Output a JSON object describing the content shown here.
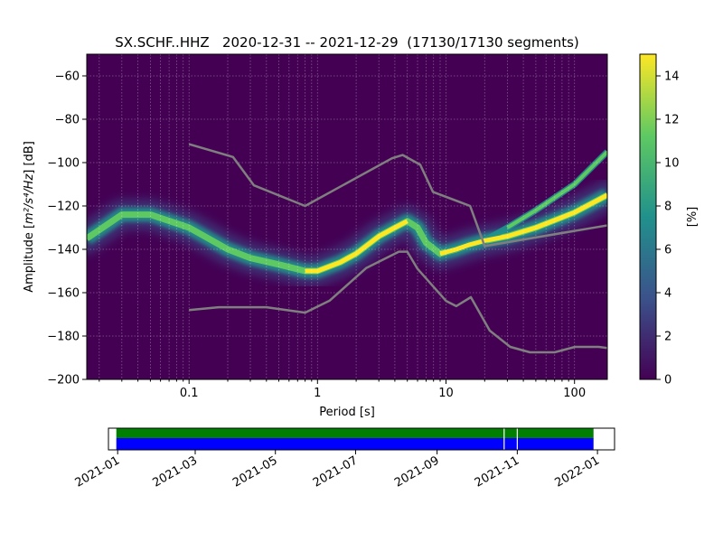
{
  "chart_data": [
    {
      "type": "heatmap",
      "title": "SX.SCHF..HHZ   2020-12-31 -- 2021-12-29  (17130/17130 segments)",
      "xlabel": "Period [s]",
      "ylabel_prefix": "Amplitude [",
      "ylabel_units": "m²/s⁴/Hz",
      "ylabel_suffix": "] [dB]",
      "x_scale": "log",
      "xlim": [
        0.016,
        180
      ],
      "ylim": [
        -200,
        -50
      ],
      "x_ticks": [
        {
          "v": 0.1,
          "label": "0.1"
        },
        {
          "v": 1,
          "label": "1"
        },
        {
          "v": 10,
          "label": "10"
        },
        {
          "v": 100,
          "label": "100"
        }
      ],
      "y_ticks": [
        {
          "v": -60,
          "label": "−60"
        },
        {
          "v": -80,
          "label": "−80"
        },
        {
          "v": -100,
          "label": "−100"
        },
        {
          "v": -120,
          "label": "−120"
        },
        {
          "v": -140,
          "label": "−140"
        },
        {
          "v": -160,
          "label": "−160"
        },
        {
          "v": -180,
          "label": "−180"
        },
        {
          "v": -200,
          "label": "−200"
        }
      ],
      "grid": true,
      "background_color": "#440154",
      "noise_model_color": "#7f7f7f",
      "mode_curve": {
        "period": [
          0.016,
          0.03,
          0.05,
          0.1,
          0.2,
          0.3,
          0.5,
          0.8,
          1.0,
          1.5,
          2.0,
          3.0,
          4.0,
          5.0,
          6.0,
          7.0,
          9.0,
          12.0,
          15.0,
          20.0,
          30.0,
          50.0,
          100.0,
          180.0
        ],
        "amplitude_db": [
          -135,
          -124,
          -124,
          -130,
          -140,
          -144,
          -147,
          -150,
          -150,
          -146,
          -142,
          -134,
          -130,
          -127,
          -130,
          -137,
          -142,
          -140,
          -138,
          -136,
          -134,
          -130,
          -123,
          -115
        ]
      },
      "upper_branch": {
        "period": [
          10,
          20,
          30,
          50,
          100,
          180
        ],
        "amplitude_db": [
          -141,
          -136,
          -130,
          -122,
          -110,
          -95
        ]
      },
      "nhnm": {
        "period": [
          0.1,
          0.22,
          0.32,
          0.8,
          3.8,
          4.6,
          6.3,
          7.9,
          15.4,
          20.0,
          354.8
        ],
        "amplitude_db": [
          -91.5,
          -97.4,
          -110.5,
          -120.0,
          -98.0,
          -96.5,
          -101.0,
          -113.5,
          -120.0,
          -138.5,
          -126.0
        ]
      },
      "nlnm": {
        "period": [
          0.1,
          0.17,
          0.4,
          0.8,
          1.24,
          2.4,
          4.3,
          5.0,
          6.0,
          10.0,
          12.0,
          15.6,
          21.9,
          31.6,
          45.0,
          70.0,
          101.0,
          154.0,
          328.0
        ],
        "amplitude_db": [
          -168.0,
          -166.7,
          -166.7,
          -169.2,
          -163.7,
          -148.6,
          -141.1,
          -141.1,
          -149.0,
          -163.8,
          -166.2,
          -162.1,
          -177.5,
          -185.0,
          -187.5,
          -187.5,
          -185.0,
          -185.0,
          -187.5
        ]
      }
    },
    {
      "type": "colorbar",
      "label": "[%]",
      "range": [
        0,
        15
      ],
      "ticks": [
        {
          "v": 0,
          "label": "0"
        },
        {
          "v": 2,
          "label": "2"
        },
        {
          "v": 4,
          "label": "4"
        },
        {
          "v": 6,
          "label": "6"
        },
        {
          "v": 8,
          "label": "8"
        },
        {
          "v": 10,
          "label": "10"
        },
        {
          "v": 12,
          "label": "12"
        },
        {
          "v": 14,
          "label": "14"
        }
      ],
      "colormap": [
        "#440154",
        "#3b528b",
        "#21918c",
        "#5ec962",
        "#fde725"
      ]
    },
    {
      "type": "timeline",
      "range": [
        "2020-12-25",
        "2022-01-14"
      ],
      "data_range": [
        "2020-12-31",
        "2021-12-29"
      ],
      "gaps": [
        "2021-10-22",
        "2021-11-01"
      ],
      "top_color": "#008000",
      "bottom_color": "#0000ff",
      "ticks": [
        {
          "date": "2021-01-01",
          "label": "2021-01"
        },
        {
          "date": "2021-03-01",
          "label": "2021-03"
        },
        {
          "date": "2021-05-01",
          "label": "2021-05"
        },
        {
          "date": "2021-07-01",
          "label": "2021-07"
        },
        {
          "date": "2021-09-01",
          "label": "2021-09"
        },
        {
          "date": "2021-11-01",
          "label": "2021-11"
        },
        {
          "date": "2022-01-01",
          "label": "2022-01"
        }
      ]
    }
  ]
}
